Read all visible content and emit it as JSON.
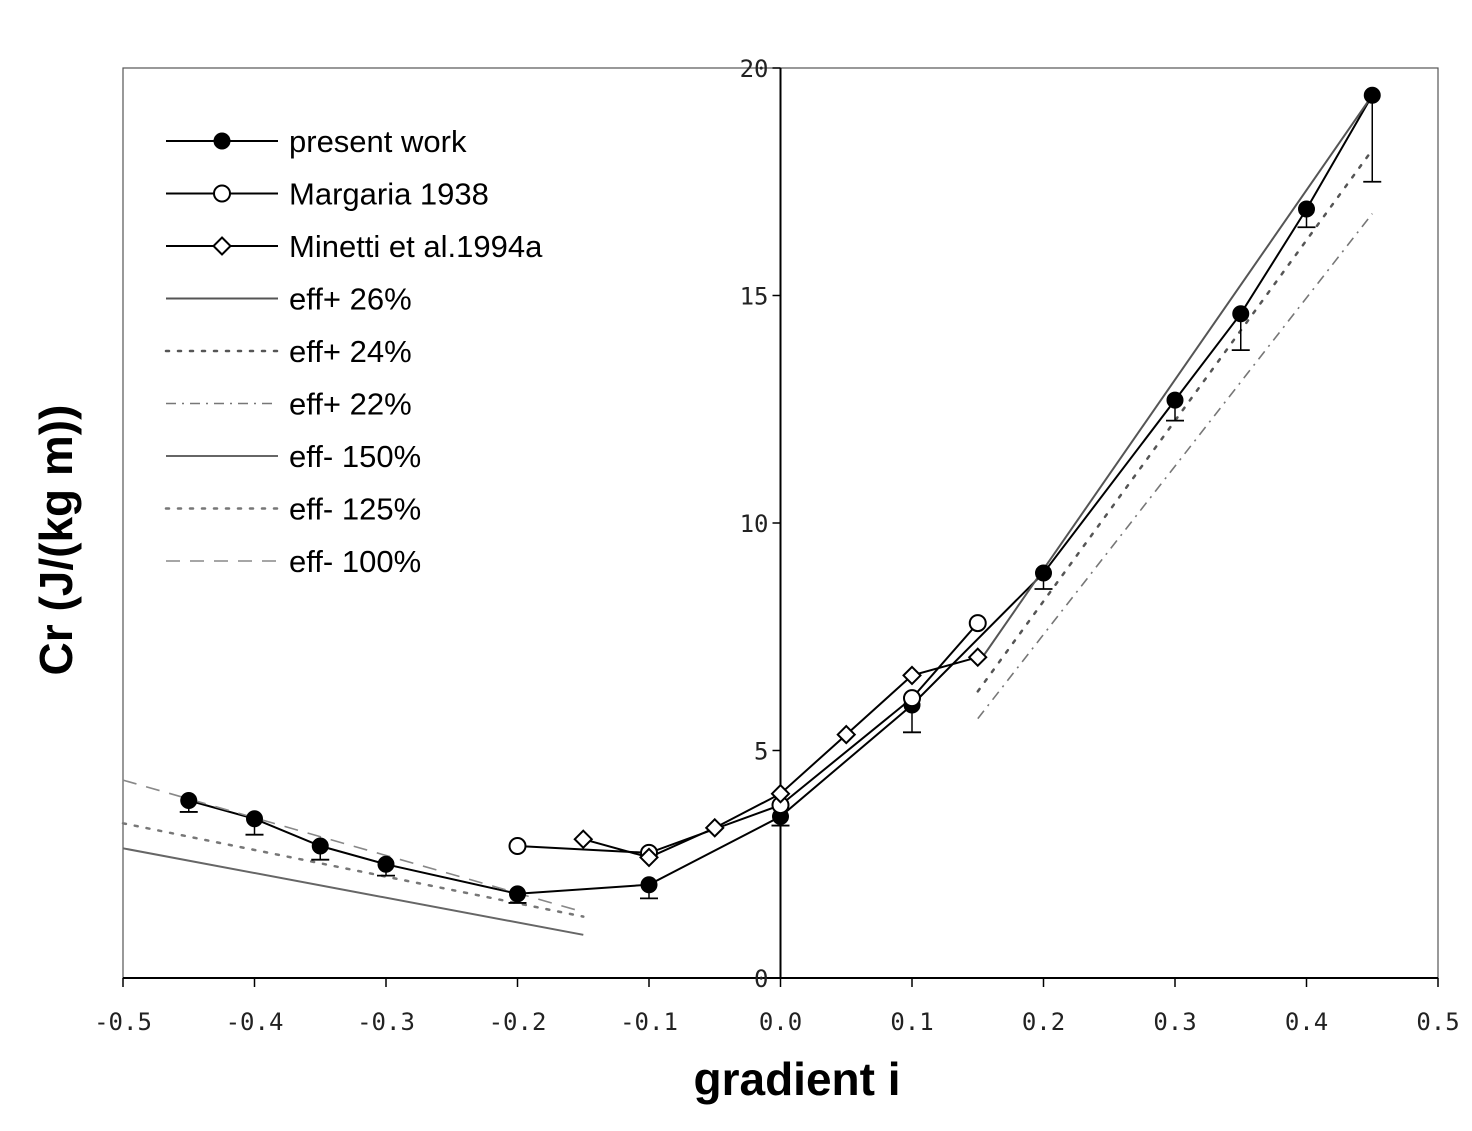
{
  "chart_data": {
    "type": "line",
    "title": "",
    "xlabel": "gradient i",
    "ylabel": "Cr (J/(kg m))",
    "xlim": [
      -0.5,
      0.5
    ],
    "ylim": [
      0,
      20
    ],
    "x_ticks": [
      "-0.5",
      "-0.4",
      "-0.3",
      "-0.2",
      "-0.1",
      "0.0",
      "0.1",
      "0.2",
      "0.3",
      "0.4",
      "0.5"
    ],
    "y_ticks": [
      "0",
      "5",
      "10",
      "15",
      "20"
    ],
    "grid": false,
    "legend_position": "top-left",
    "series": [
      {
        "name": "present work",
        "marker": "filled-circle",
        "style": "solid",
        "color": "#000000",
        "x": [
          -0.45,
          -0.4,
          -0.35,
          -0.3,
          -0.2,
          -0.1,
          0.0,
          0.1,
          0.2,
          0.3,
          0.35,
          0.4,
          0.45
        ],
        "y": [
          3.9,
          3.5,
          2.9,
          2.5,
          1.85,
          2.05,
          3.55,
          6.0,
          8.9,
          12.7,
          14.6,
          16.9,
          19.4
        ],
        "err": [
          0.25,
          0.35,
          0.3,
          0.25,
          0.2,
          0.3,
          0.2,
          0.6,
          0.35,
          0.45,
          0.8,
          0.4,
          1.9
        ]
      },
      {
        "name": "Margaria 1938",
        "marker": "open-circle",
        "style": "solid",
        "color": "#000000",
        "x": [
          -0.2,
          -0.1,
          0.0,
          0.1,
          0.15
        ],
        "y": [
          2.9,
          2.75,
          3.8,
          6.15,
          7.8
        ]
      },
      {
        "name": "Minetti et al.1994a",
        "marker": "open-diamond",
        "style": "solid",
        "color": "#000000",
        "x": [
          -0.15,
          -0.1,
          -0.05,
          0.0,
          0.05,
          0.1,
          0.15
        ],
        "y": [
          3.05,
          2.65,
          3.3,
          4.05,
          5.35,
          6.65,
          7.05
        ]
      },
      {
        "name": "eff+ 26%",
        "style": "solid",
        "color": "#555555",
        "x": [
          0.15,
          0.45
        ],
        "y": [
          6.9,
          19.4
        ]
      },
      {
        "name": "eff+ 24%",
        "style": "dotted",
        "color": "#555555",
        "x": [
          0.15,
          0.45
        ],
        "y": [
          6.3,
          18.2
        ]
      },
      {
        "name": "eff+ 22%",
        "style": "dash-dot",
        "color": "#777777",
        "x": [
          0.15,
          0.45
        ],
        "y": [
          5.7,
          16.8
        ]
      },
      {
        "name": "eff- 150%",
        "style": "solid",
        "color": "#666666",
        "x": [
          -0.5,
          -0.15
        ],
        "y": [
          2.85,
          0.95
        ]
      },
      {
        "name": "eff- 125%",
        "style": "dotted",
        "color": "#777777",
        "x": [
          -0.5,
          -0.15
        ],
        "y": [
          3.4,
          1.35
        ]
      },
      {
        "name": "eff- 100%",
        "style": "dashed",
        "color": "#888888",
        "x": [
          -0.5,
          -0.15
        ],
        "y": [
          4.35,
          1.45
        ]
      }
    ]
  }
}
